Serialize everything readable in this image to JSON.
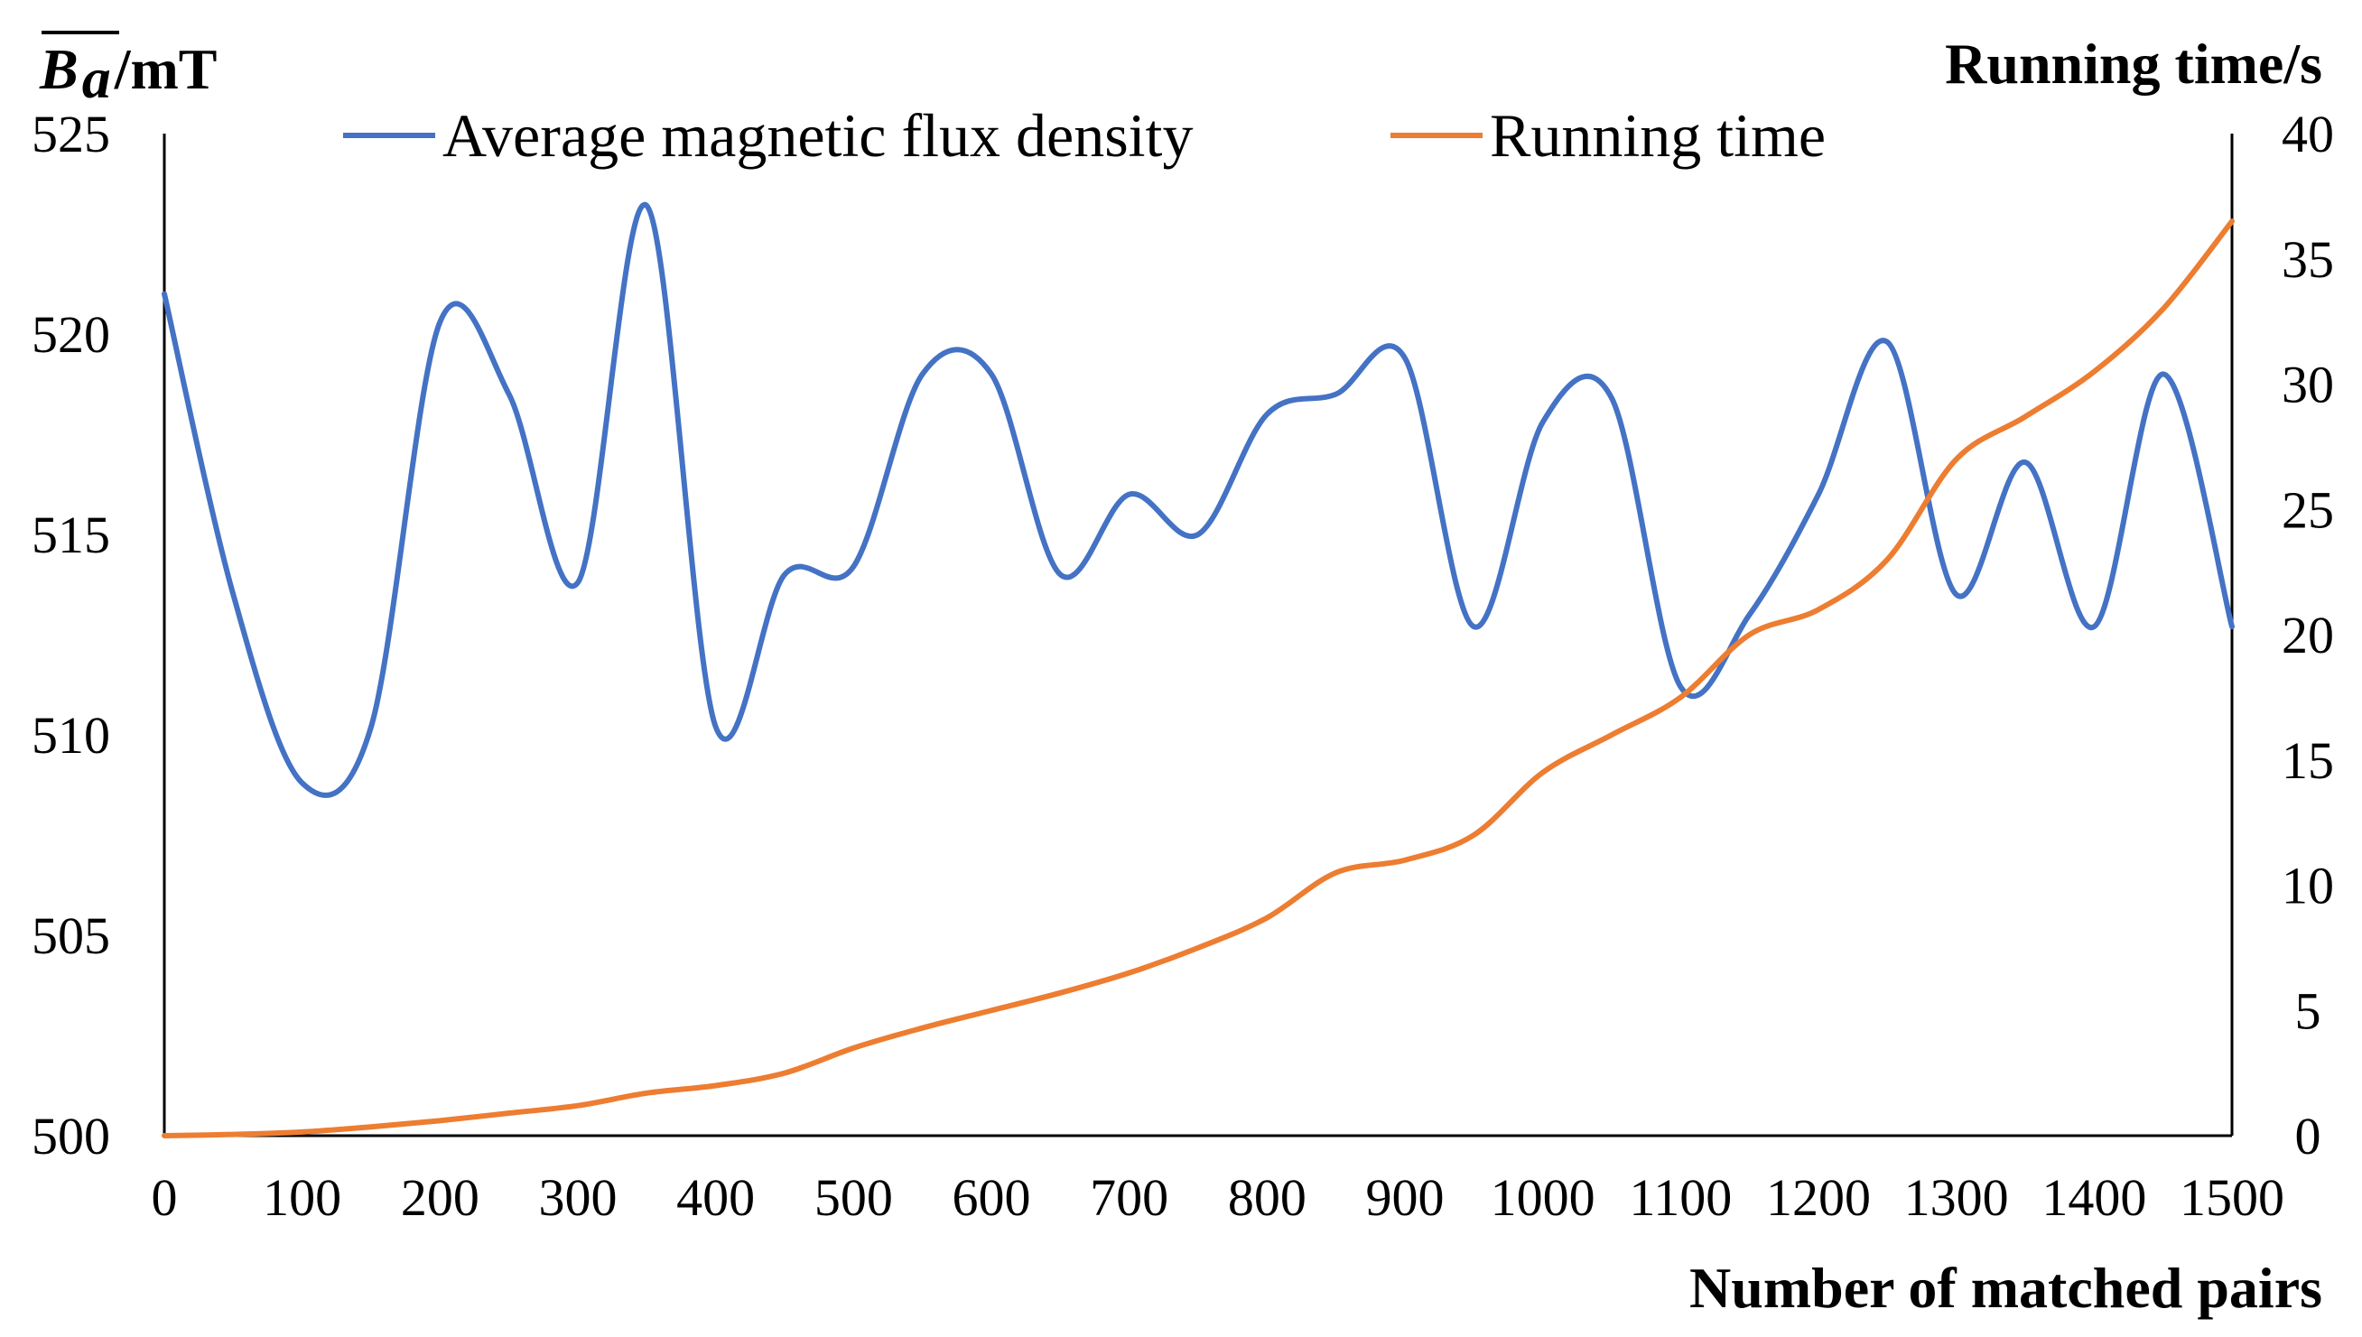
{
  "chart_data": {
    "type": "line",
    "xlabel": "Number of matched pairs",
    "ylabel": {
      "symbol": "B",
      "subscript": "a",
      "unit": "/mT"
    },
    "y2label": "Running time/s",
    "xlim": [
      0,
      1500
    ],
    "ylim": [
      500,
      525
    ],
    "y2lim": [
      0,
      40
    ],
    "x_ticks": [
      "0",
      "100",
      "200",
      "300",
      "400",
      "500",
      "600",
      "700",
      "800",
      "900",
      "1000",
      "1100",
      "1200",
      "1300",
      "1400",
      "1500"
    ],
    "y_ticks": [
      "500",
      "505",
      "510",
      "515",
      "520",
      "525"
    ],
    "y2_ticks": [
      "0",
      "5",
      "10",
      "15",
      "20",
      "25",
      "30",
      "35",
      "40"
    ],
    "grid": false,
    "legend_position": "top",
    "x": [
      0,
      50,
      100,
      150,
      200,
      250,
      300,
      350,
      400,
      450,
      500,
      550,
      600,
      650,
      700,
      750,
      800,
      850,
      900,
      950,
      1000,
      1050,
      1100,
      1150,
      1200,
      1250,
      1300,
      1350,
      1400,
      1450,
      1500
    ],
    "series": [
      {
        "name": "Average magnetic flux density",
        "axis": "left",
        "color": "#4472C4",
        "values": [
          521.0,
          513.5,
          508.8,
          510.2,
          520.3,
          518.5,
          513.8,
          523.2,
          510.2,
          514.0,
          514.2,
          519.0,
          519.0,
          514.0,
          516.0,
          515.0,
          518.0,
          518.5,
          519.4,
          512.7,
          517.8,
          518.4,
          511.2,
          513.0,
          516.0,
          519.8,
          513.5,
          516.8,
          512.7,
          519.0,
          512.7
        ]
      },
      {
        "name": "Running time",
        "axis": "right",
        "color": "#ED7D31",
        "values": [
          0.0,
          0.05,
          0.15,
          0.35,
          0.6,
          0.9,
          1.2,
          1.7,
          2.0,
          2.5,
          3.5,
          4.3,
          5.0,
          5.7,
          6.5,
          7.5,
          8.7,
          10.5,
          11.0,
          12.0,
          14.5,
          16.0,
          17.5,
          20.0,
          21.0,
          23.0,
          27.0,
          28.7,
          30.5,
          33.0,
          36.5
        ]
      }
    ]
  }
}
